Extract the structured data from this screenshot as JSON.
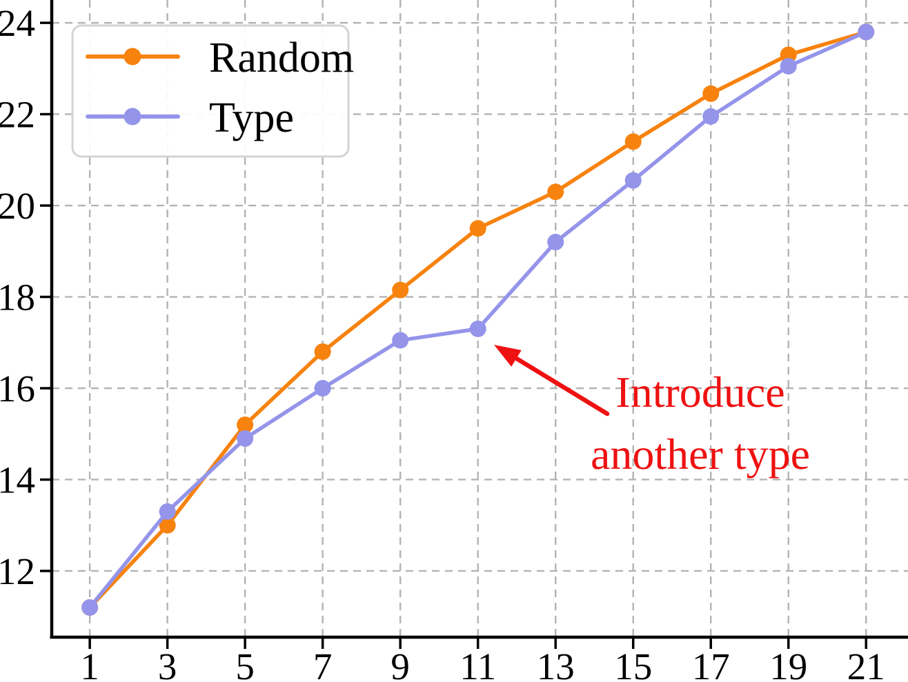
{
  "chart_data": {
    "type": "line",
    "title": "",
    "xlabel": "",
    "ylabel": "",
    "grid": true,
    "grid_style": "dashed",
    "legend_position": "upper-left",
    "x": [
      1,
      3,
      5,
      7,
      9,
      11,
      13,
      15,
      17,
      19,
      21
    ],
    "series": [
      {
        "name": "Random",
        "color": "#f7820d",
        "marker": "circle",
        "values": [
          11.2,
          13.0,
          15.2,
          16.8,
          18.15,
          19.5,
          20.3,
          21.4,
          22.45,
          23.3,
          23.8
        ]
      },
      {
        "name": "Type",
        "color": "#9494ea",
        "marker": "circle",
        "values": [
          11.2,
          13.3,
          14.9,
          16.0,
          17.05,
          17.3,
          19.2,
          20.55,
          21.95,
          23.05,
          23.8
        ]
      }
    ],
    "x_ticks": [
      "1",
      "3",
      "5",
      "7",
      "9",
      "11",
      "13",
      "15",
      "17",
      "19",
      "21"
    ],
    "x_tick_values": [
      1,
      3,
      5,
      7,
      9,
      11,
      13,
      15,
      17,
      19,
      21
    ],
    "y_ticks": [
      "12",
      "14",
      "16",
      "18",
      "20",
      "22",
      "24"
    ],
    "y_tick_values": [
      12,
      14,
      16,
      18,
      20,
      22,
      24
    ],
    "xlim": [
      0.02,
      22.08
    ],
    "ylim": [
      10.55,
      24.5
    ],
    "annotation": {
      "lines": [
        "Introduce",
        "another type"
      ],
      "color": "#ee1111",
      "points_to_series": "Type",
      "points_to_x": 11,
      "points_to_y": 17.3
    },
    "colors": {
      "axis": "#000000",
      "grid": "#b3b3b3",
      "legend_border": "#d3d3d3",
      "legend_background": "#ffffff",
      "annotation_red": "#ee1111"
    }
  }
}
